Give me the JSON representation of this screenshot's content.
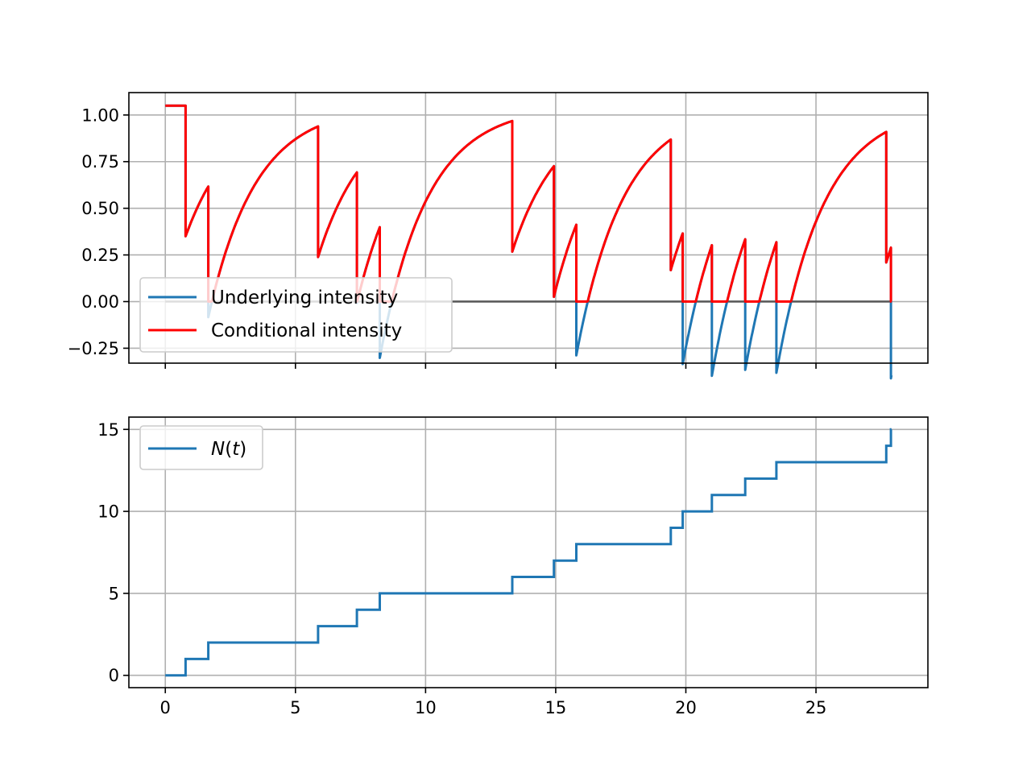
{
  "chart_data": [
    {
      "type": "line",
      "title": "",
      "xlabel": "",
      "ylabel": "",
      "xlim": [
        -1.4,
        29.3
      ],
      "ylim": [
        -0.33,
        1.12
      ],
      "grid": true,
      "legend_position": "lower-left",
      "x_ticks": [
        0,
        5,
        10,
        15,
        20,
        25
      ],
      "x_tick_labels_visible": false,
      "y_ticks": [
        -0.25,
        0,
        0.25,
        0.5,
        0.75,
        1.0
      ],
      "y_tick_labels": [
        "−0.25",
        "0.00",
        "0.25",
        "0.50",
        "0.75",
        "1.00"
      ],
      "baseline": {
        "y": 0,
        "x_range": [
          0,
          27.9
        ],
        "color": "#555555"
      },
      "model": {
        "mu": 1.05,
        "jump": 0.7,
        "decay": 0.55,
        "t_end": 27.9,
        "events": [
          0.78,
          1.65,
          5.87,
          7.36,
          8.24,
          13.33,
          14.93,
          15.79,
          19.42,
          19.88,
          21.0,
          22.28,
          23.48,
          27.7,
          27.88
        ]
      },
      "series": [
        {
          "name": "Underlying intensity",
          "color": "#1f77b4"
        },
        {
          "name": "Conditional intensity",
          "color": "#ff0000"
        }
      ]
    },
    {
      "type": "line",
      "title": "",
      "xlabel": "",
      "ylabel": "",
      "xlim": [
        -1.4,
        29.3
      ],
      "ylim": [
        -0.75,
        15.75
      ],
      "grid": true,
      "legend_position": "upper-left",
      "x_ticks": [
        0,
        5,
        10,
        15,
        20,
        25
      ],
      "x_tick_labels": [
        "0",
        "5",
        "10",
        "15",
        "20",
        "25"
      ],
      "y_ticks": [
        0,
        5,
        10,
        15
      ],
      "y_tick_labels": [
        "0",
        "5",
        "10",
        "15"
      ],
      "series": [
        {
          "name_prefix": "N",
          "name_arg": "t",
          "color": "#1f77b4"
        }
      ]
    }
  ]
}
